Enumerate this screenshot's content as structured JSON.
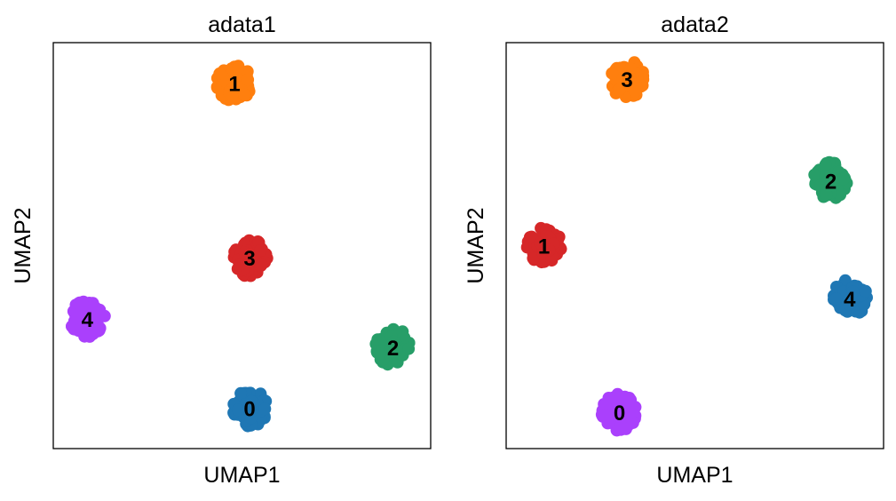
{
  "chart_data": [
    {
      "type": "scatter",
      "title": "adata1",
      "xlabel": "UMAP1",
      "ylabel": "UMAP2",
      "xlim": [
        0,
        10
      ],
      "ylim": [
        0,
        10
      ],
      "grid": false,
      "ticks_shown": false,
      "clusters": [
        {
          "label": "0",
          "color": "#1f77b4",
          "x": 5.2,
          "y": 1.0
        },
        {
          "label": "1",
          "color": "#ff7f0e",
          "x": 4.8,
          "y": 9.0
        },
        {
          "label": "2",
          "color": "#279e68",
          "x": 9.0,
          "y": 2.5
        },
        {
          "label": "3",
          "color": "#d62728",
          "x": 5.2,
          "y": 4.7
        },
        {
          "label": "4",
          "color": "#aa40fc",
          "x": 0.9,
          "y": 3.2
        }
      ]
    },
    {
      "type": "scatter",
      "title": "adata2",
      "xlabel": "UMAP1",
      "ylabel": "UMAP2",
      "xlim": [
        0,
        10
      ],
      "ylim": [
        0,
        10
      ],
      "grid": false,
      "ticks_shown": false,
      "clusters": [
        {
          "label": "0",
          "color": "#aa40fc",
          "x": 3.0,
          "y": 0.9
        },
        {
          "label": "1",
          "color": "#d62728",
          "x": 1.0,
          "y": 5.0
        },
        {
          "label": "2",
          "color": "#279e68",
          "x": 8.6,
          "y": 6.6
        },
        {
          "label": "3",
          "color": "#ff7f0e",
          "x": 3.2,
          "y": 9.1
        },
        {
          "label": "4",
          "color": "#1f77b4",
          "x": 9.1,
          "y": 3.7
        }
      ]
    }
  ]
}
